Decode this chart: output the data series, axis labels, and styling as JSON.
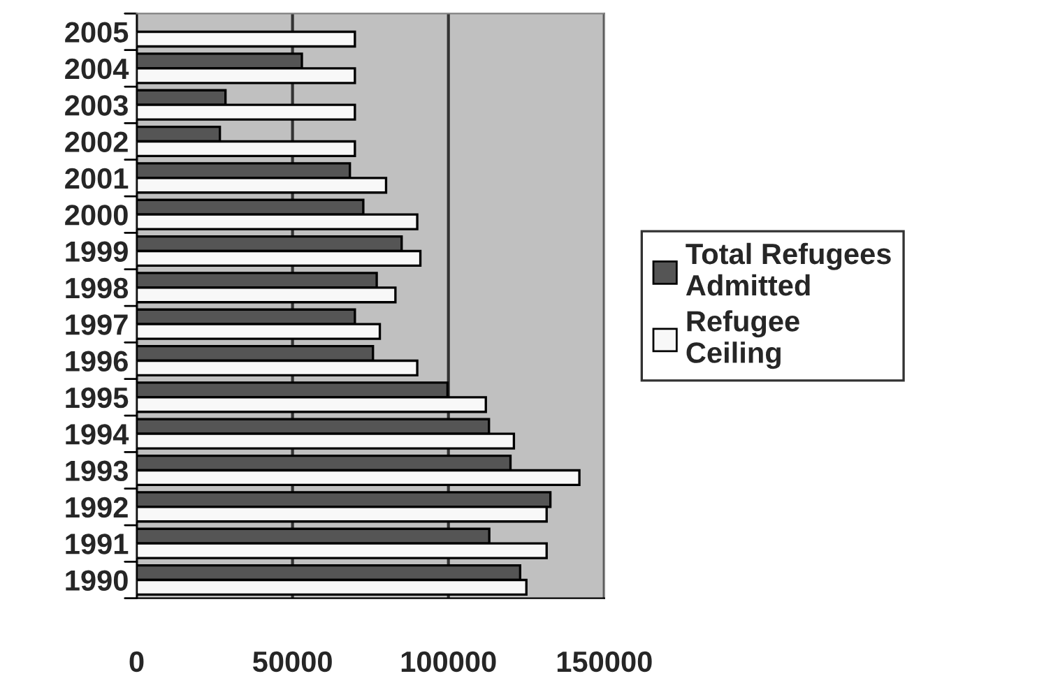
{
  "chart_data": {
    "type": "bar",
    "orientation": "horizontal",
    "categories": [
      "2005",
      "2004",
      "2003",
      "2002",
      "2001",
      "2000",
      "1999",
      "1998",
      "1997",
      "1996",
      "1995",
      "1994",
      "1993",
      "1992",
      "1991",
      "1990"
    ],
    "series": [
      {
        "name": "Total Refugees\nAdmitted",
        "color": "#555555",
        "values": [
          null,
          53000,
          28500,
          26700,
          68400,
          72700,
          85000,
          77000,
          70000,
          75800,
          99700,
          113000,
          119900,
          132700,
          113100,
          123000
        ]
      },
      {
        "name": "Refugee\nCeiling",
        "color": "#f8f8f8",
        "values": [
          70000,
          70000,
          70000,
          70000,
          80000,
          90000,
          91000,
          83000,
          78000,
          90000,
          112000,
          121000,
          142000,
          131500,
          131500,
          125000
        ]
      }
    ],
    "xlim": [
      0,
      150000
    ],
    "xticks": [
      0,
      50000,
      100000,
      150000
    ],
    "grid": "x",
    "legend": "right"
  }
}
